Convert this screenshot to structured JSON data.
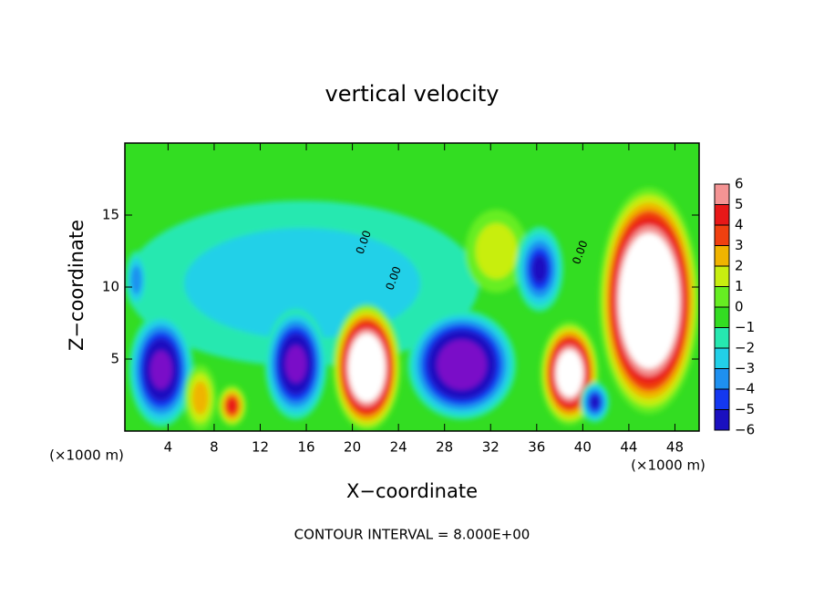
{
  "chart_data": {
    "type": "contourf",
    "title": "vertical velocity",
    "x_label": "X−coordinate",
    "y_label": "Z−coordinate",
    "x_unit_left": "(×1000 m)",
    "x_unit_right": "(×1000 m)",
    "footer": "CONTOUR INTERVAL = 8.000E+00",
    "xlim": [
      0.25,
      50.1
    ],
    "ylim": [
      0,
      20
    ],
    "xticks": [
      4,
      8,
      12,
      16,
      20,
      24,
      28,
      32,
      36,
      40,
      44,
      48
    ],
    "yticks": [
      5,
      10,
      15
    ],
    "background_color": "#33dd22",
    "colorbar": {
      "levels": [
        {
          "value": -6,
          "label": "−6"
        },
        {
          "value": -5,
          "label": "−5"
        },
        {
          "value": -4,
          "label": "−4"
        },
        {
          "value": -3,
          "label": "−3"
        },
        {
          "value": -2,
          "label": "−2"
        },
        {
          "value": -1,
          "label": "−1"
        },
        0,
        1,
        2,
        3,
        4,
        5,
        6
      ],
      "colors": [
        "#7a10c8",
        "#1a10c0",
        "#1438f0",
        "#1e90f0",
        "#22d0e8",
        "#26e8b0",
        "#33dd22",
        "#66ee22",
        "#c8ee10",
        "#f0b400",
        "#f04010",
        "#e81818",
        "#f49494"
      ]
    },
    "features": [
      {
        "x": [
          0.3,
          31
        ],
        "z": [
          4.5,
          16
        ],
        "value": -2
      },
      {
        "x": [
          0.3,
          2.2
        ],
        "z": [
          8.5,
          12.5
        ],
        "value": -3
      },
      {
        "x": [
          0.6,
          6.2
        ],
        "z": [
          0.3,
          8.2
        ],
        "value": -8
      },
      {
        "x": [
          5.4,
          8.2
        ],
        "z": [
          0,
          4.6
        ],
        "value": 3
      },
      {
        "x": [
          8.3,
          10.8
        ],
        "z": [
          0.3,
          3.2
        ],
        "value": 5
      },
      {
        "x": [
          12.4,
          17.8
        ],
        "z": [
          0.8,
          8.5
        ],
        "value": -8
      },
      {
        "x": [
          18.3,
          24.2
        ],
        "z": [
          0,
          8.8
        ],
        "value": 12
      },
      {
        "x": [
          24.8,
          34.2
        ],
        "z": [
          0.8,
          8.4
        ],
        "value": -10
      },
      {
        "x": [
          29.8,
          35.2
        ],
        "z": [
          9.6,
          15.4
        ],
        "value": 2
      },
      {
        "x": [
          34.2,
          38.3
        ],
        "z": [
          8.3,
          14.2
        ],
        "value": -5
      },
      {
        "x": [
          36.3,
          41.4
        ],
        "z": [
          0.4,
          7.6
        ],
        "value": 10
      },
      {
        "x": [
          39.8,
          42.3
        ],
        "z": [
          0.6,
          3.4
        ],
        "value": -5
      },
      {
        "x": [
          41.4,
          50.1
        ],
        "z": [
          1.2,
          16.9
        ],
        "value": 14
      }
    ],
    "contour_labels": [
      {
        "text": "0.00",
        "x": 21,
        "z": 13.1
      },
      {
        "text": "0.00",
        "x": 23.6,
        "z": 10.6
      },
      {
        "text": "0.00",
        "x": 39.8,
        "z": 12.4
      }
    ]
  }
}
